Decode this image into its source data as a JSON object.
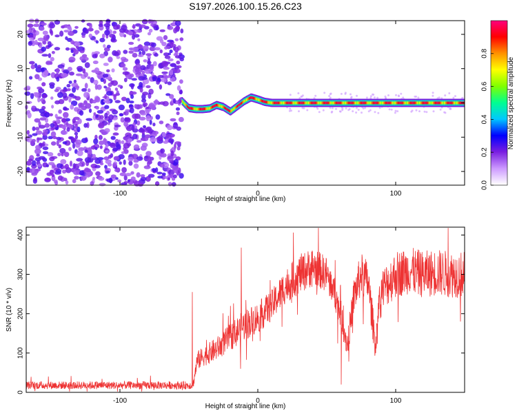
{
  "figure_title": "S197.2026.100.15.26.C23",
  "chart_data": [
    {
      "type": "heatmap",
      "title": "",
      "xlabel": "Height of straight line (km)",
      "ylabel": "Frequency (Hz)",
      "xlim": [
        -168,
        150
      ],
      "ylim": [
        -24,
        24
      ],
      "xticks": [
        -100,
        0,
        100
      ],
      "yticks": [
        -20,
        -10,
        0,
        10,
        20
      ],
      "colorbar": {
        "label": "Normalized spectral amplitude",
        "range": [
          0,
          1
        ],
        "ticks": [
          "0.0",
          "0.2",
          "0.4",
          "0.6",
          "0.8"
        ],
        "tick_values": [
          0.0,
          0.2,
          0.4,
          0.6,
          0.8
        ],
        "colors": [
          "#ffffff",
          "#cc99ff",
          "#7a1fe0",
          "#0000ff",
          "#00c8ff",
          "#00ff90",
          "#80ff00",
          "#ffff00",
          "#ff9000",
          "#ff0000",
          "#ff0080"
        ]
      },
      "noise_region_x": [
        -168,
        -55
      ],
      "ridge": {
        "description": "narrow high-amplitude frequency line",
        "x": [
          -55,
          -50,
          -45,
          -40,
          -35,
          -30,
          -25,
          -20,
          -15,
          -10,
          -5,
          0,
          5,
          10,
          20,
          40,
          60,
          80,
          100,
          120,
          150
        ],
        "freq": [
          0.5,
          -1.5,
          -1.8,
          -1.8,
          -1.6,
          -0.6,
          -1.2,
          -2.5,
          -1.0,
          0.5,
          1.6,
          1.0,
          0.3,
          0.0,
          0.0,
          0.0,
          0.0,
          0.0,
          0.0,
          0.0,
          0.0
        ]
      }
    },
    {
      "type": "line",
      "title": "",
      "xlabel": "Height of straight line (km)",
      "ylabel": "SNR (10 * v/v)",
      "xlim": [
        -168,
        150
      ],
      "ylim": [
        0,
        420
      ],
      "xticks": [
        -100,
        0,
        100
      ],
      "yticks": [
        0,
        100,
        200,
        300,
        400
      ],
      "series": [
        {
          "name": "SNR",
          "color": "#ee3333",
          "envelope_x": [
            -168,
            -100,
            -60,
            -47,
            -44,
            -40,
            -30,
            -20,
            -10,
            0,
            10,
            20,
            30,
            40,
            50,
            55,
            60,
            65,
            70,
            75,
            80,
            85,
            90,
            100,
            110,
            120,
            130,
            140,
            150
          ],
          "envelope_mean": [
            18,
            18,
            18,
            18,
            80,
            90,
            110,
            140,
            170,
            190,
            220,
            270,
            300,
            320,
            300,
            260,
            200,
            120,
            250,
            300,
            280,
            130,
            260,
            300,
            310,
            300,
            305,
            300,
            300
          ],
          "envelope_half_spread": [
            10,
            10,
            10,
            10,
            25,
            25,
            30,
            35,
            40,
            40,
            40,
            45,
            50,
            50,
            45,
            40,
            40,
            35,
            50,
            55,
            55,
            40,
            55,
            60,
            60,
            60,
            60,
            60,
            60
          ],
          "spikes": [
            {
              "x": -47.5,
              "y": 255
            },
            {
              "x": -12,
              "y": 368
            },
            {
              "x": -12.5,
              "y": 60
            },
            {
              "x": 60.5,
              "y": 20
            },
            {
              "x": 85.5,
              "y": 100
            },
            {
              "x": 147,
              "y": 180
            }
          ]
        }
      ]
    }
  ]
}
